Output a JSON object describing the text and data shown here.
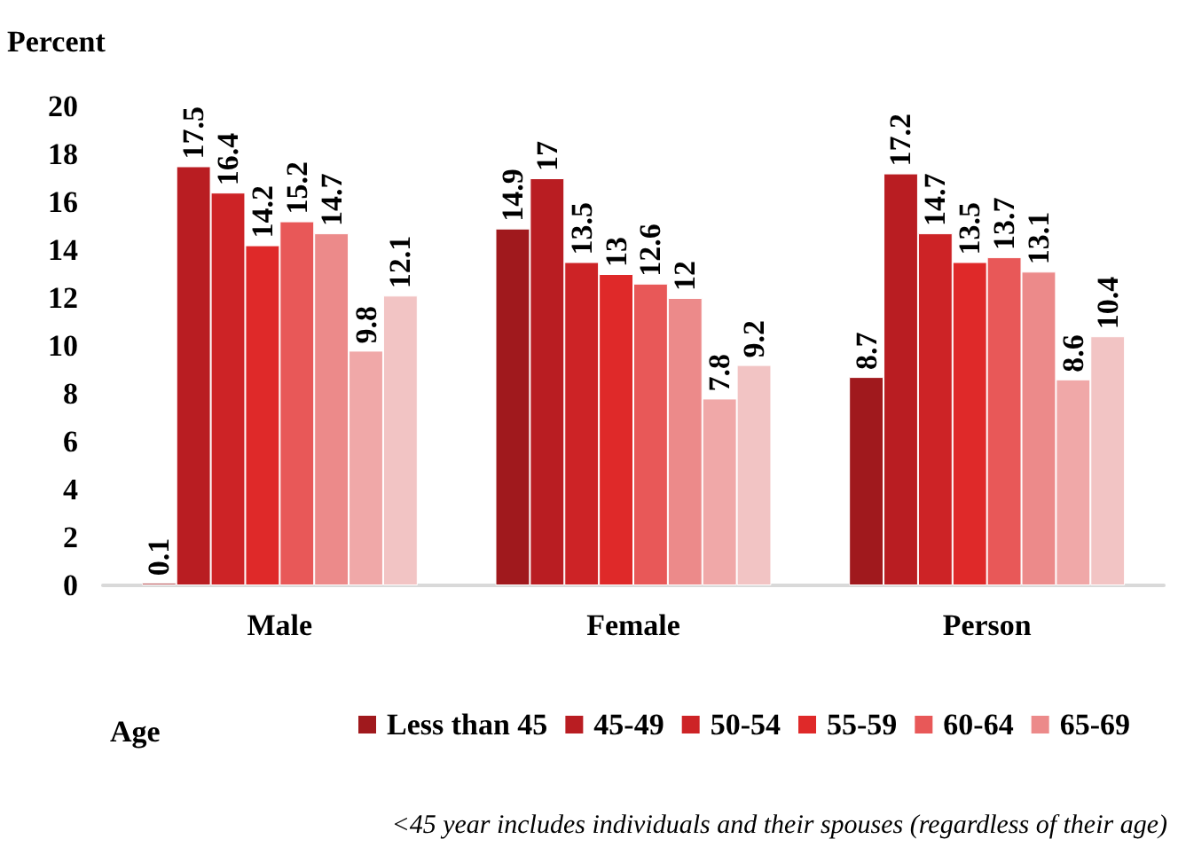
{
  "chart_data": {
    "type": "bar",
    "ylabel": "Percent",
    "legend_title": "Age",
    "categories": [
      "Male",
      "Female",
      "Person"
    ],
    "series": [
      {
        "name": "Less than 45",
        "color": "#a0191d",
        "values": [
          0.1,
          14.9,
          8.7
        ]
      },
      {
        "name": "45-49",
        "color": "#b91d22",
        "values": [
          17.5,
          17,
          17.2
        ]
      },
      {
        "name": "50-54",
        "color": "#cd2326",
        "values": [
          16.4,
          13.5,
          14.7
        ]
      },
      {
        "name": "55-59",
        "color": "#df2929",
        "values": [
          14.2,
          13,
          13.5
        ]
      },
      {
        "name": "60-64",
        "color": "#e85858",
        "values": [
          15.2,
          12.6,
          13.7
        ]
      },
      {
        "name": "65-69",
        "color": "#ec8a8a",
        "values": [
          14.7,
          12,
          13.1
        ]
      },
      {
        "color": "#f0a8a8",
        "values": [
          9.8,
          7.8,
          8.6
        ]
      },
      {
        "color": "#f2c4c4",
        "values": [
          12.1,
          9.2,
          10.4
        ]
      }
    ],
    "ylim": [
      0,
      20
    ],
    "yticks": [
      0,
      2,
      4,
      6,
      8,
      10,
      12,
      14,
      16,
      18,
      20
    ],
    "grid": false,
    "legend": "bottom",
    "data_labels": true,
    "annotations": [
      "<45 year includes individuals and their spouses (regardless of their age)"
    ]
  }
}
